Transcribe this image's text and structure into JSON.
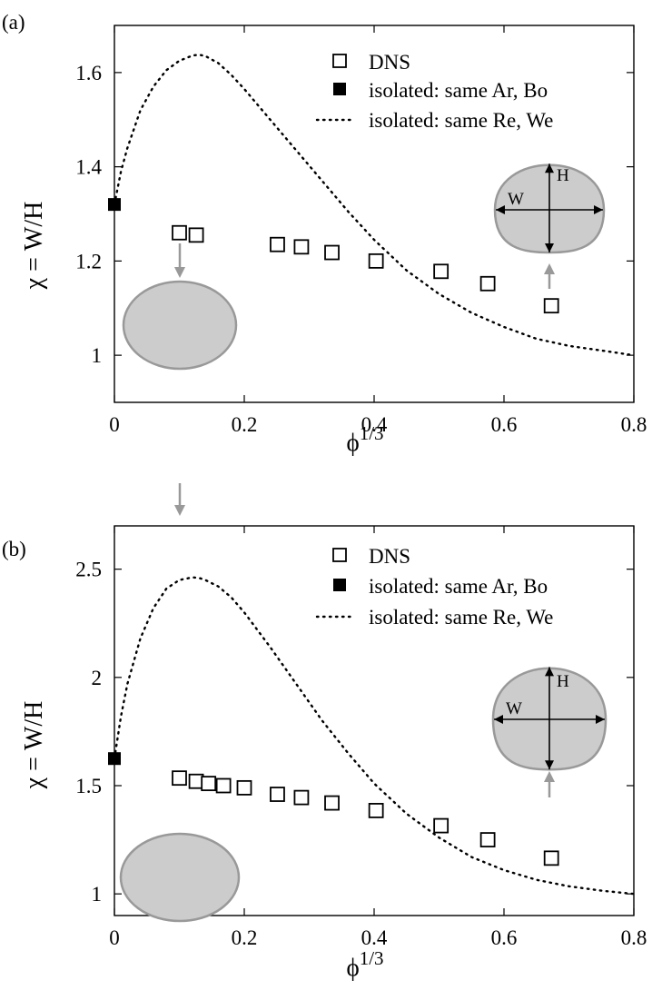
{
  "chart_data": [
    {
      "type": "scatter",
      "panel_label": "(a)",
      "xlabel_base": "ϕ",
      "xlabel_sup": "1/3",
      "ylabel": "χ = W/H",
      "xlim": [
        0,
        0.8
      ],
      "ylim": [
        0.9,
        1.7
      ],
      "xticks": [
        0,
        0.2,
        0.4,
        0.6,
        0.8
      ],
      "xtick_labels": [
        "0",
        "0.2",
        "0.4",
        "0.6",
        "0.8"
      ],
      "yticks": [
        1.0,
        1.2,
        1.4,
        1.6
      ],
      "ytick_labels": [
        "1",
        "1.2",
        "1.4",
        "1.6"
      ],
      "legend": {
        "position": "top-right",
        "entries": [
          "DNS",
          "isolated: same Ar, Bo",
          "isolated: same Re, We"
        ]
      },
      "series": [
        {
          "name": "DNS",
          "marker": "open-square",
          "x": [
            0.1,
            0.126,
            0.251,
            0.288,
            0.335,
            0.403,
            0.503,
            0.575,
            0.673
          ],
          "y": [
            1.26,
            1.255,
            1.235,
            1.23,
            1.218,
            1.2,
            1.178,
            1.152,
            1.105
          ]
        },
        {
          "name": "isolated: same Ar, Bo",
          "marker": "filled-square",
          "x": [
            0
          ],
          "y": [
            1.32
          ]
        },
        {
          "name": "isolated: same Re, We",
          "style": "dotted-line",
          "x": [
            0,
            0.01,
            0.02,
            0.04,
            0.06,
            0.08,
            0.1,
            0.12,
            0.13,
            0.14,
            0.16,
            0.18,
            0.2,
            0.24,
            0.28,
            0.32,
            0.36,
            0.4,
            0.45,
            0.5,
            0.55,
            0.6,
            0.65,
            0.7,
            0.75,
            0.8
          ],
          "y": [
            1.32,
            1.39,
            1.44,
            1.52,
            1.57,
            1.605,
            1.625,
            1.636,
            1.638,
            1.635,
            1.62,
            1.595,
            1.565,
            1.5,
            1.435,
            1.37,
            1.305,
            1.245,
            1.18,
            1.13,
            1.09,
            1.06,
            1.035,
            1.02,
            1.01,
            1.0
          ]
        }
      ],
      "insets": [
        {
          "shape": "bubble-rising-cap",
          "W": "W",
          "H": "H",
          "points_to_x": 0.673
        },
        {
          "shape": "ellipse",
          "points_to_x": 0.1
        }
      ]
    },
    {
      "type": "scatter",
      "panel_label": "(b)",
      "xlabel_base": "ϕ",
      "xlabel_sup": "1/3",
      "ylabel": "χ = W/H",
      "xlim": [
        0,
        0.8
      ],
      "ylim": [
        0.9,
        2.7
      ],
      "xticks": [
        0,
        0.2,
        0.4,
        0.6,
        0.8
      ],
      "xtick_labels": [
        "0",
        "0.2",
        "0.4",
        "0.6",
        "0.8"
      ],
      "yticks": [
        1.0,
        1.5,
        2.0,
        2.5
      ],
      "ytick_labels": [
        "1",
        "1.5",
        "2",
        "2.5"
      ],
      "legend": {
        "position": "top-right",
        "entries": [
          "DNS",
          "isolated: same Ar, Bo",
          "isolated: same Re, We"
        ]
      },
      "series": [
        {
          "name": "DNS",
          "marker": "open-square",
          "x": [
            0.1,
            0.126,
            0.145,
            0.168,
            0.2,
            0.251,
            0.288,
            0.335,
            0.403,
            0.503,
            0.575,
            0.673
          ],
          "y": [
            1.535,
            1.52,
            1.51,
            1.5,
            1.49,
            1.46,
            1.445,
            1.42,
            1.385,
            1.315,
            1.25,
            1.165
          ]
        },
        {
          "name": "isolated: same Ar, Bo",
          "marker": "filled-square",
          "x": [
            0
          ],
          "y": [
            1.625
          ]
        },
        {
          "name": "isolated: same Re, We",
          "style": "dotted-line",
          "x": [
            0,
            0.01,
            0.02,
            0.04,
            0.06,
            0.08,
            0.1,
            0.12,
            0.13,
            0.14,
            0.16,
            0.18,
            0.2,
            0.24,
            0.28,
            0.32,
            0.36,
            0.4,
            0.45,
            0.5,
            0.55,
            0.6,
            0.65,
            0.7,
            0.75,
            0.8
          ],
          "y": [
            1.625,
            1.82,
            1.97,
            2.18,
            2.32,
            2.41,
            2.45,
            2.462,
            2.46,
            2.45,
            2.42,
            2.37,
            2.3,
            2.14,
            1.97,
            1.8,
            1.65,
            1.51,
            1.37,
            1.26,
            1.17,
            1.11,
            1.065,
            1.035,
            1.015,
            1.0
          ]
        }
      ],
      "insets": [
        {
          "shape": "bubble-rising-cap",
          "W": "W",
          "H": "H",
          "points_to_x": 0.673
        },
        {
          "shape": "ellipse",
          "points_to_x": 0.1
        }
      ]
    }
  ]
}
